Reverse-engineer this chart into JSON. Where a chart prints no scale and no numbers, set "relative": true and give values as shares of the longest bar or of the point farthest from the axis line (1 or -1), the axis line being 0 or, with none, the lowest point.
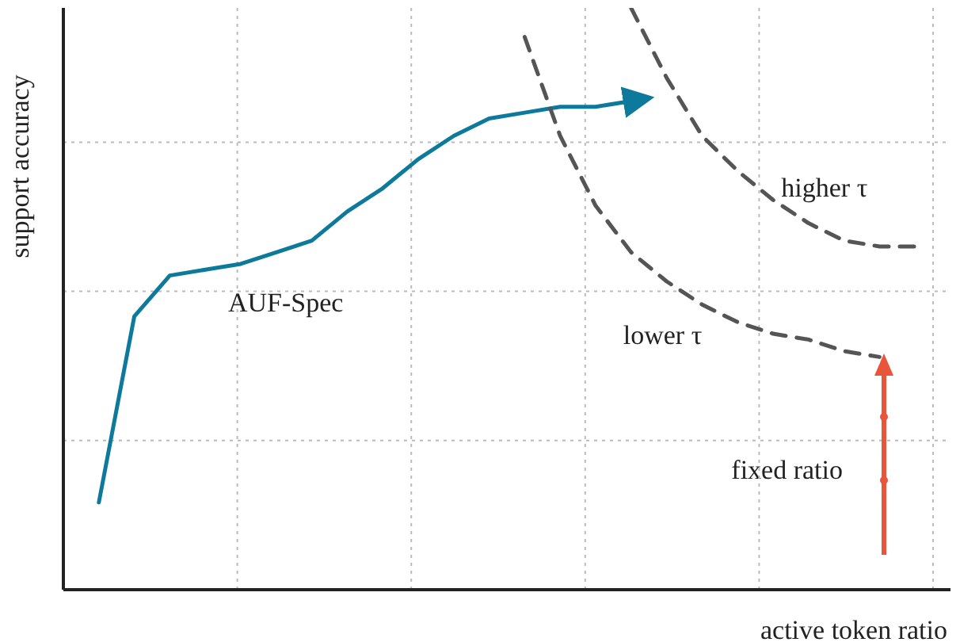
{
  "chart_data": {
    "type": "line",
    "relative": true,
    "xlabel": "active token ratio",
    "ylabel": "support accuracy",
    "grid": true,
    "legend": false,
    "marker": "none",
    "line_style": "solid",
    "categories": [
      null,
      null,
      null,
      null,
      null,
      null,
      null,
      null,
      null,
      null,
      null,
      null,
      null,
      null,
      null,
      null,
      null,
      null,
      null,
      null,
      null,
      null,
      null,
      null,
      null,
      null
    ],
    "series": [
      {
        "name": "AUF-Spec",
        "color": "#0e7a9b",
        "values": [
          null,
          0.15,
          0.47,
          0.54,
          0.55,
          0.56,
          0.58,
          0.6,
          0.65,
          0.69,
          0.74,
          0.78,
          0.81,
          0.82,
          0.83,
          0.83,
          0.84,
          null,
          null,
          null,
          null,
          null,
          null,
          null,
          null,
          null
        ]
      },
      {
        "name": "higher τ",
        "color": "#555555",
        "line_style": "dashed",
        "values": [
          null,
          null,
          null,
          null,
          null,
          null,
          null,
          null,
          null,
          null,
          null,
          null,
          null,
          null,
          null,
          null,
          1,
          0.88,
          0.78,
          0.72,
          0.67,
          0.63,
          0.6,
          0.59,
          0.59,
          null
        ]
      },
      {
        "name": "lower τ",
        "color": "#555555",
        "line_style": "dashed",
        "values": [
          null,
          null,
          null,
          null,
          null,
          null,
          null,
          null,
          null,
          null,
          null,
          null,
          null,
          0.95,
          0.78,
          0.66,
          0.58,
          0.53,
          0.49,
          0.46,
          0.44,
          0.43,
          0.41,
          0.4,
          null,
          null
        ]
      }
    ],
    "annotations": [
      "fixed ratio"
    ]
  }
}
